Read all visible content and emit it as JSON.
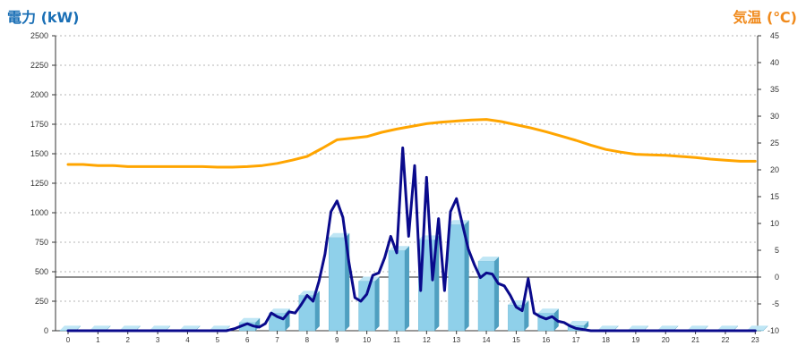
{
  "chart_data": {
    "type": "bar",
    "ylabel_left": "電力 (kW)",
    "ylabel_right": "気温 (℃)",
    "categories": [
      "0",
      "1",
      "2",
      "3",
      "4",
      "5",
      "6",
      "7",
      "8",
      "9",
      "10",
      "11",
      "12",
      "13",
      "14",
      "15",
      "16",
      "17",
      "18",
      "19",
      "20",
      "21",
      "22",
      "23"
    ],
    "ylim_left": [
      0,
      2500
    ],
    "yticks_left": [
      0,
      250,
      500,
      750,
      1000,
      1250,
      1500,
      1750,
      2000,
      2250,
      2500
    ],
    "ylim_right": [
      -10,
      45
    ],
    "yticks_right": [
      -10,
      -5,
      0,
      5,
      10,
      15,
      20,
      25,
      30,
      35,
      40,
      45
    ],
    "grid": "horizontal-dashed",
    "series": [
      {
        "type": "bar",
        "axis": "left",
        "color": "#87ceeb",
        "values": [
          5,
          5,
          5,
          5,
          5,
          5,
          70,
          150,
          300,
          790,
          420,
          680,
          770,
          900,
          590,
          220,
          150,
          45,
          5,
          5,
          5,
          5,
          5,
          5
        ]
      },
      {
        "type": "line",
        "axis": "left",
        "color": "#0a0a8c",
        "x": [
          0,
          0.5,
          1,
          1.5,
          2,
          2.5,
          3,
          3.5,
          4,
          4.5,
          5,
          5.3,
          5.6,
          5.8,
          6,
          6.2,
          6.4,
          6.6,
          6.8,
          7,
          7.2,
          7.4,
          7.6,
          7.8,
          8,
          8.2,
          8.4,
          8.6,
          8.8,
          9,
          9.2,
          9.4,
          9.6,
          9.8,
          10,
          10.2,
          10.4,
          10.6,
          10.8,
          11,
          11.2,
          11.4,
          11.6,
          11.8,
          12,
          12.2,
          12.4,
          12.6,
          12.8,
          13,
          13.2,
          13.4,
          13.6,
          13.8,
          14,
          14.2,
          14.4,
          14.6,
          14.8,
          15,
          15.2,
          15.4,
          15.6,
          15.8,
          16,
          16.2,
          16.4,
          16.6,
          16.8,
          17,
          17.5,
          18,
          19,
          20,
          21,
          22,
          23
        ],
        "values": [
          0,
          0,
          0,
          0,
          0,
          0,
          0,
          0,
          0,
          0,
          0,
          0,
          20,
          40,
          60,
          40,
          30,
          60,
          150,
          120,
          100,
          160,
          150,
          220,
          300,
          250,
          420,
          650,
          1010,
          1100,
          960,
          580,
          280,
          250,
          310,
          470,
          490,
          620,
          800,
          660,
          1550,
          800,
          1400,
          340,
          1300,
          430,
          950,
          340,
          1010,
          1120,
          900,
          690,
          560,
          450,
          490,
          480,
          400,
          380,
          300,
          200,
          170,
          440,
          150,
          120,
          100,
          120,
          80,
          70,
          40,
          20,
          0,
          0,
          0,
          0,
          0,
          0,
          0
        ]
      },
      {
        "type": "line",
        "axis": "right",
        "color": "#ffa500",
        "x": [
          0,
          0.5,
          1,
          1.5,
          2,
          3,
          4,
          4.5,
          5,
          5.5,
          6,
          6.5,
          7,
          7.5,
          8,
          8.5,
          9,
          9.5,
          10,
          10.5,
          11,
          11.5,
          12,
          12.5,
          13,
          13.5,
          14,
          14.5,
          15,
          15.5,
          16,
          16.5,
          17,
          17.5,
          18,
          18.5,
          19,
          19.5,
          20,
          20.5,
          21,
          21.5,
          22,
          22.5,
          23
        ],
        "values": [
          21.0,
          21.0,
          20.8,
          20.8,
          20.6,
          20.6,
          20.6,
          20.6,
          20.5,
          20.5,
          20.6,
          20.8,
          21.2,
          21.8,
          22.5,
          24.0,
          25.6,
          25.9,
          26.2,
          27.0,
          27.6,
          28.1,
          28.6,
          28.9,
          29.1,
          29.3,
          29.4,
          29.0,
          28.4,
          27.8,
          27.1,
          26.3,
          25.5,
          24.6,
          23.8,
          23.3,
          22.9,
          22.8,
          22.7,
          22.5,
          22.3,
          22.0,
          21.8,
          21.6,
          21.6
        ]
      }
    ]
  }
}
